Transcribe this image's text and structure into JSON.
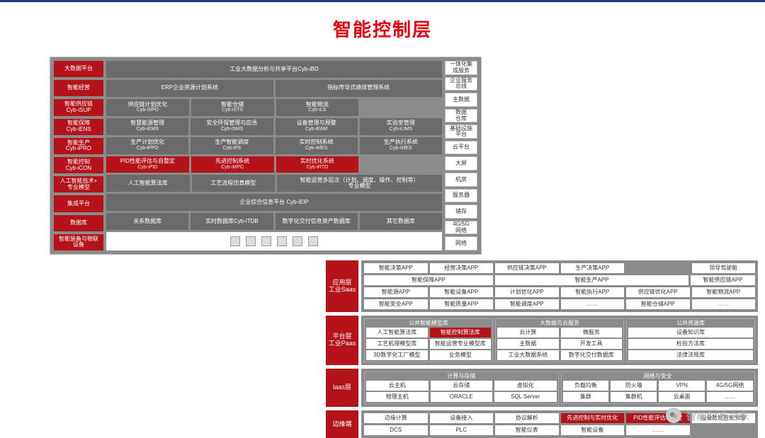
{
  "title": "智能控制层",
  "colors": {
    "title_color": "#e60012",
    "red": "#b4131a",
    "gray_bg": "#8b8b8b",
    "gray_cell": "#6b6b6b",
    "white": "#ffffff",
    "border": "#bbbbbb",
    "top_border": "#1a3a6e",
    "wm_text": "#aaaaaa"
  },
  "top": {
    "left_tabs": [
      "大数据平台",
      "智能经营",
      "智能供应链\nCyb-iSUP",
      "智能保障\nCyb-iENS",
      "智能生产\nCyb-iPRO",
      "智能控制\nCyb-iCON",
      "人工智能技术+\n专业模型",
      "集成平台",
      "数据库",
      "智能装备与物联\n设备"
    ],
    "rows": [
      {
        "cells": [
          {
            "t": "工业大数据分析与共享平台Cyb-iBD",
            "c": "g",
            "span": 4
          }
        ]
      },
      {
        "cells": [
          {
            "t": "ERP企业资源计划系统",
            "c": "g",
            "span": 2
          },
          {
            "t": "指标传导式绩效管理系统",
            "c": "g",
            "span": 2
          }
        ]
      },
      {
        "cells": [
          {
            "t": "供应链计划优化",
            "s": "Cyb-iSPO",
            "c": "g"
          },
          {
            "t": "智能仓储",
            "s": "Cyb-iSTS",
            "c": "g"
          },
          {
            "t": "智能物流",
            "s": "Cyb-iLS",
            "c": "g"
          },
          {
            "t": "",
            "c": "blank"
          }
        ]
      },
      {
        "cells": [
          {
            "t": "智慧能源管理",
            "s": "Cyb-iEMS",
            "c": "g"
          },
          {
            "t": "安全环保管理与应急",
            "s": "Cyb-iSMS",
            "c": "g"
          },
          {
            "t": "设备管理与预警",
            "s": "Cyb-iEAM",
            "c": "g"
          },
          {
            "t": "实验室管理",
            "s": "Cyb-iLIMS",
            "c": "g"
          }
        ]
      },
      {
        "cells": [
          {
            "t": "生产计划优化",
            "s": "Cyb-iPPO",
            "c": "g"
          },
          {
            "t": "生产智能调度",
            "s": "Cyb-iPS",
            "c": "g"
          },
          {
            "t": "实时控制系统",
            "s": "Cyb-iMES",
            "c": "g"
          },
          {
            "t": "生产执行系统",
            "s": "Cyb-iMES",
            "c": "g"
          }
        ]
      },
      {
        "cells": [
          {
            "t": "PID性能评估与自整定",
            "s": "Cyb-iPID",
            "c": "r"
          },
          {
            "t": "先进控制系统",
            "s": "Cyb-iMPC",
            "c": "r"
          },
          {
            "t": "实时优化系统",
            "s": "Cyb-iRTO",
            "c": "r"
          },
          {
            "t": "",
            "c": "blank"
          }
        ]
      },
      {
        "cells": [
          {
            "t": "人工智能算法库",
            "c": "g"
          },
          {
            "t": "工艺流程仿真模型",
            "c": "g"
          },
          {
            "t": "智能运营多层次（计划、调度、操作、控制等）\n专业模型",
            "c": "g",
            "span": 2
          }
        ]
      },
      {
        "cells": [
          {
            "t": "企业综合信息平台 Cyb-iEIP",
            "c": "g",
            "span": 4
          }
        ]
      },
      {
        "cells": [
          {
            "t": "关系数据库",
            "c": "g"
          },
          {
            "t": "实时数据库Cyb-iTDB",
            "c": "g"
          },
          {
            "t": "数字化交付信息资产数据库",
            "c": "g"
          },
          {
            "t": "其它数据库",
            "c": "g"
          }
        ]
      },
      {
        "icons": true,
        "items": [
          "box",
          "rack",
          "hand",
          "rfid",
          "qr",
          "qr"
        ]
      }
    ],
    "right_side": [
      "一体化集\n成服务",
      "企业服务\n总线",
      "主数据",
      "数据\n仓库",
      "基础设施\n平台",
      "云平台",
      "大屏",
      "机房",
      "服务器",
      "储存",
      "4G/5G\n网络",
      "网络"
    ]
  },
  "bottom": {
    "sections": [
      {
        "tab": "应用层\n工业Saas",
        "rows": [
          [
            {
              "t": "智能决策APP"
            },
            {
              "t": "经营决策APP"
            },
            {
              "t": "供应链决策APP"
            },
            {
              "t": "生产决策APP"
            },
            {
              "t": ""
            },
            {
              "t": "领导驾驶舱"
            }
          ],
          [
            {
              "t": "智能保障APP",
              "span": 2
            },
            {
              "t": "智能生产APP",
              "span": 3
            },
            {
              "t": "智能供应链APP"
            }
          ],
          [
            {
              "t": "智能源APP"
            },
            {
              "t": "智能设备APP"
            },
            {
              "t": "计划优化APP"
            },
            {
              "t": "智能执行APP"
            },
            {
              "t": "供应链优化APP"
            },
            {
              "t": "智能物流APP"
            }
          ],
          [
            {
              "t": "智能安全APP"
            },
            {
              "t": "智能质量APP"
            },
            {
              "t": "智能调度APP"
            },
            {
              "t": "……"
            },
            {
              "t": "智能仓储APP"
            },
            {
              "t": "……"
            }
          ]
        ]
      },
      {
        "tab": "平台层\n工业Paas",
        "groups": [
          {
            "head": "公共智能模型库",
            "rows": [
              [
                {
                  "t": "人工智能算法库"
                },
                {
                  "t": "智能控制算法库",
                  "c": "r"
                }
              ],
              [
                {
                  "t": "工艺机理模型库"
                },
                {
                  "t": "智能运营专业模型库"
                }
              ],
              [
                {
                  "t": "3D数字化工厂模型"
                },
                {
                  "t": "业务模型"
                }
              ]
            ]
          },
          {
            "head": "大数据与云服务",
            "rows": [
              [
                {
                  "t": "云计算"
                },
                {
                  "t": "微服务"
                }
              ],
              [
                {
                  "t": "主数据"
                },
                {
                  "t": "开发工具"
                }
              ],
              [
                {
                  "t": "工业大数据系统"
                },
                {
                  "t": "数字化交付数据库"
                }
              ]
            ]
          },
          {
            "head": "公共资源库",
            "rows": [
              [
                {
                  "t": "设备知识库"
                }
              ],
              [
                {
                  "t": "检验方法库"
                }
              ],
              [
                {
                  "t": "法律法规库"
                }
              ]
            ]
          }
        ]
      },
      {
        "tab": "Iaas层",
        "groups": [
          {
            "head": "计算与存储",
            "rows": [
              [
                {
                  "t": "云主机"
                },
                {
                  "t": "云存储"
                },
                {
                  "t": "虚拟化"
                }
              ],
              [
                {
                  "t": "物理主机"
                },
                {
                  "t": "ORACLE"
                },
                {
                  "t": "SQL Server"
                }
              ]
            ]
          },
          {
            "head": "网络与安全",
            "rows": [
              [
                {
                  "t": "负载均衡"
                },
                {
                  "t": "防火墙"
                },
                {
                  "t": "VPN"
                },
                {
                  "t": "4G/5G网络"
                }
              ],
              [
                {
                  "t": "集群"
                },
                {
                  "t": "集群机"
                },
                {
                  "t": "云桌面"
                },
                {
                  "t": "……"
                }
              ]
            ]
          }
        ]
      },
      {
        "tab": "边缘端",
        "rows": [
          [
            {
              "t": "边缘计算"
            },
            {
              "t": "设备接入"
            },
            {
              "t": "协议解析"
            },
            {
              "t": "先进控制与实时优化",
              "c": "r"
            },
            {
              "t": "PID性能评估与整定",
              "c": "r"
            },
            {
              "t": "设备数据智能预警"
            }
          ],
          [
            {
              "t": "DCS"
            },
            {
              "t": "PLC"
            },
            {
              "t": "智能仪表"
            },
            {
              "t": "智能设备"
            },
            {
              "t": "……"
            },
            {
              "t": ""
            }
          ]
        ]
      }
    ]
  },
  "watermark": {
    "text": "智能制造之家",
    "icon": "wechat"
  }
}
